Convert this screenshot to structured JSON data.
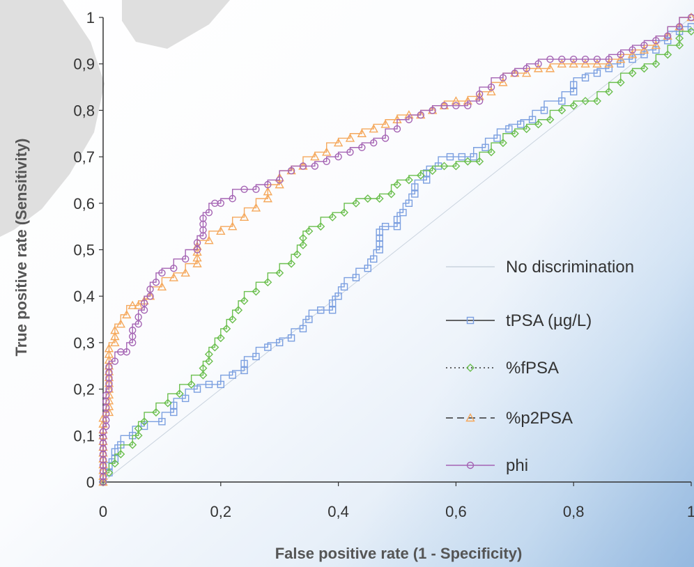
{
  "chart_data": {
    "type": "line",
    "xlabel": "False positive rate (1 - Specificity)",
    "ylabel": "True positive rate (Sensitivity)",
    "xlim": [
      0,
      1
    ],
    "ylim": [
      0,
      1
    ],
    "x_ticks": [
      0,
      0.2,
      0.4,
      0.6,
      0.8,
      1
    ],
    "x_tick_labels": [
      "0",
      "0,2",
      "0,4",
      "0,6",
      "0,8",
      "1"
    ],
    "y_ticks": [
      0,
      0.1,
      0.2,
      0.3,
      0.4,
      0.5,
      0.6,
      0.7,
      0.8,
      0.9,
      1
    ],
    "y_tick_labels": [
      "0",
      "0,1",
      "0,2",
      "0,3",
      "0,4",
      "0,5",
      "0,6",
      "0,7",
      "0,8",
      "0,9",
      "1"
    ],
    "grid": false,
    "legend_position": "bottom-right",
    "series": [
      {
        "name": "No discrimination",
        "color": "#c9d3de",
        "marker": "none",
        "dash": "solid",
        "x": [
          0,
          1
        ],
        "y": [
          0,
          1
        ]
      },
      {
        "name": "tPSA (µg/L)",
        "color": "#7b9fe0",
        "marker": "square",
        "dash": "solid",
        "x": [
          0,
          0.01,
          0.02,
          0.03,
          0.05,
          0.07,
          0.1,
          0.12,
          0.14,
          0.16,
          0.18,
          0.2,
          0.22,
          0.24,
          0.26,
          0.28,
          0.3,
          0.32,
          0.34,
          0.35,
          0.37,
          0.39,
          0.4,
          0.41,
          0.43,
          0.45,
          0.46,
          0.47,
          0.48,
          0.5,
          0.51,
          0.52,
          0.53,
          0.55,
          0.57,
          0.59,
          0.61,
          0.63,
          0.65,
          0.67,
          0.69,
          0.71,
          0.73,
          0.75,
          0.78,
          0.8,
          0.82,
          0.84,
          0.86,
          0.88,
          0.9,
          0.92,
          0.94,
          0.96,
          0.98,
          1
        ],
        "y": [
          0,
          0.02,
          0.05,
          0.08,
          0.1,
          0.12,
          0.13,
          0.15,
          0.18,
          0.2,
          0.21,
          0.21,
          0.23,
          0.24,
          0.27,
          0.29,
          0.3,
          0.31,
          0.33,
          0.35,
          0.37,
          0.37,
          0.4,
          0.42,
          0.44,
          0.46,
          0.48,
          0.5,
          0.55,
          0.55,
          0.58,
          0.6,
          0.62,
          0.65,
          0.68,
          0.7,
          0.7,
          0.7,
          0.72,
          0.74,
          0.76,
          0.77,
          0.78,
          0.8,
          0.82,
          0.84,
          0.87,
          0.88,
          0.89,
          0.9,
          0.91,
          0.92,
          0.93,
          0.95,
          0.97,
          0.98
        ]
      },
      {
        "name": "%fPSA",
        "color": "#6bbf4e",
        "marker": "diamond",
        "dash": "dotted",
        "x": [
          0,
          0.01,
          0.02,
          0.03,
          0.05,
          0.06,
          0.07,
          0.09,
          0.11,
          0.13,
          0.15,
          0.17,
          0.18,
          0.19,
          0.2,
          0.21,
          0.22,
          0.23,
          0.24,
          0.26,
          0.28,
          0.3,
          0.32,
          0.33,
          0.34,
          0.35,
          0.37,
          0.39,
          0.41,
          0.43,
          0.45,
          0.47,
          0.49,
          0.5,
          0.52,
          0.54,
          0.56,
          0.58,
          0.6,
          0.62,
          0.64,
          0.66,
          0.68,
          0.7,
          0.72,
          0.74,
          0.76,
          0.78,
          0.8,
          0.82,
          0.84,
          0.86,
          0.88,
          0.9,
          0.92,
          0.94,
          0.96,
          0.98,
          1
        ],
        "y": [
          0,
          0.02,
          0.04,
          0.06,
          0.08,
          0.1,
          0.13,
          0.15,
          0.17,
          0.19,
          0.21,
          0.23,
          0.26,
          0.29,
          0.31,
          0.33,
          0.35,
          0.37,
          0.39,
          0.41,
          0.43,
          0.45,
          0.47,
          0.49,
          0.51,
          0.54,
          0.55,
          0.57,
          0.58,
          0.6,
          0.61,
          0.61,
          0.62,
          0.64,
          0.65,
          0.66,
          0.67,
          0.68,
          0.68,
          0.69,
          0.69,
          0.71,
          0.73,
          0.75,
          0.76,
          0.77,
          0.78,
          0.8,
          0.81,
          0.82,
          0.82,
          0.84,
          0.86,
          0.88,
          0.89,
          0.9,
          0.92,
          0.94,
          0.97
        ]
      },
      {
        "name": "%p2PSA",
        "color": "#f5a85c",
        "marker": "triangle",
        "dash": "dashed",
        "x": [
          0,
          0.01,
          0.02,
          0.03,
          0.04,
          0.05,
          0.06,
          0.07,
          0.08,
          0.1,
          0.12,
          0.14,
          0.16,
          0.18,
          0.2,
          0.22,
          0.24,
          0.26,
          0.28,
          0.3,
          0.32,
          0.34,
          0.36,
          0.38,
          0.4,
          0.42,
          0.44,
          0.46,
          0.48,
          0.5,
          0.52,
          0.54,
          0.56,
          0.58,
          0.6,
          0.62,
          0.64,
          0.66,
          0.68,
          0.7,
          0.72,
          0.74,
          0.76,
          0.78,
          0.8,
          0.82,
          0.84,
          0.86,
          0.88,
          0.9,
          0.92,
          0.94,
          0.96,
          0.98,
          1
        ],
        "y": [
          0,
          0.15,
          0.3,
          0.34,
          0.36,
          0.38,
          0.38,
          0.39,
          0.4,
          0.42,
          0.44,
          0.45,
          0.47,
          0.52,
          0.54,
          0.55,
          0.57,
          0.59,
          0.61,
          0.64,
          0.67,
          0.68,
          0.7,
          0.71,
          0.73,
          0.74,
          0.75,
          0.76,
          0.77,
          0.78,
          0.79,
          0.79,
          0.8,
          0.81,
          0.82,
          0.82,
          0.83,
          0.84,
          0.86,
          0.88,
          0.88,
          0.89,
          0.89,
          0.9,
          0.9,
          0.9,
          0.9,
          0.9,
          0.91,
          0.92,
          0.93,
          0.94,
          0.96,
          0.98,
          1
        ]
      },
      {
        "name": "phi",
        "color": "#a463b3",
        "marker": "circle",
        "dash": "solid",
        "x": [
          0,
          0.005,
          0.01,
          0.02,
          0.03,
          0.04,
          0.05,
          0.06,
          0.07,
          0.08,
          0.09,
          0.1,
          0.12,
          0.14,
          0.16,
          0.17,
          0.18,
          0.19,
          0.2,
          0.22,
          0.24,
          0.26,
          0.28,
          0.3,
          0.32,
          0.34,
          0.36,
          0.38,
          0.4,
          0.42,
          0.44,
          0.46,
          0.48,
          0.5,
          0.52,
          0.54,
          0.56,
          0.58,
          0.6,
          0.62,
          0.64,
          0.66,
          0.68,
          0.7,
          0.72,
          0.74,
          0.76,
          0.78,
          0.8,
          0.82,
          0.84,
          0.86,
          0.88,
          0.9,
          0.92,
          0.94,
          0.96,
          0.98,
          1
        ],
        "y": [
          0,
          0.12,
          0.2,
          0.26,
          0.28,
          0.28,
          0.3,
          0.34,
          0.37,
          0.4,
          0.43,
          0.45,
          0.46,
          0.48,
          0.5,
          0.53,
          0.58,
          0.6,
          0.6,
          0.61,
          0.63,
          0.63,
          0.64,
          0.65,
          0.67,
          0.68,
          0.68,
          0.69,
          0.7,
          0.71,
          0.72,
          0.73,
          0.74,
          0.76,
          0.78,
          0.79,
          0.8,
          0.81,
          0.81,
          0.81,
          0.82,
          0.85,
          0.87,
          0.88,
          0.89,
          0.9,
          0.91,
          0.91,
          0.91,
          0.91,
          0.91,
          0.91,
          0.92,
          0.93,
          0.94,
          0.95,
          0.96,
          0.98,
          1
        ]
      }
    ]
  }
}
